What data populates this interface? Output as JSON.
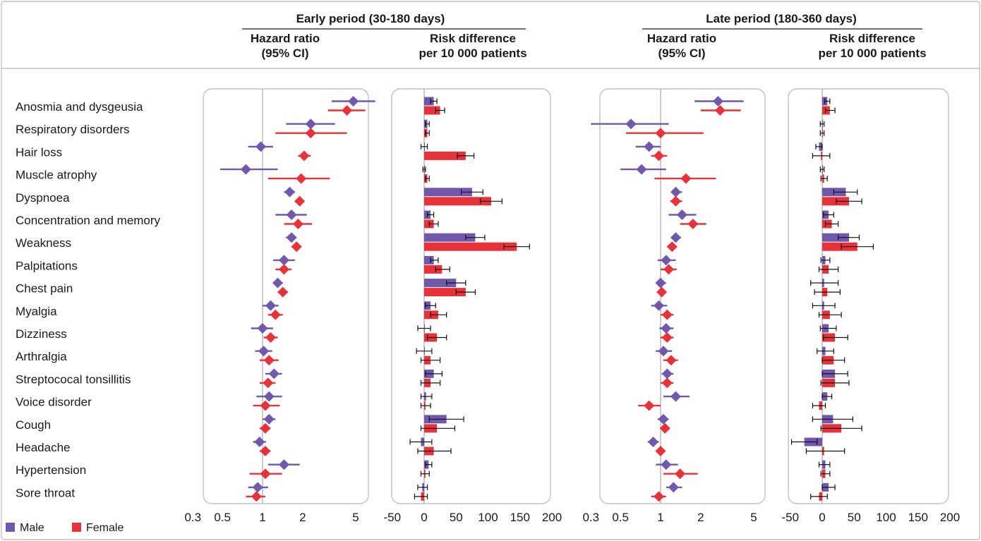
{
  "colors": {
    "male": "#7058ad",
    "female": "#e8323a",
    "axis": "#a9a9a9",
    "frame": "#b8b8b8",
    "text": "#1a1a1a"
  },
  "headers": {
    "early_title": "Early period (30-180 days)",
    "late_title": "Late period (180-360 days)",
    "hr_line1": "Hazard ratio",
    "hr_line2": "(95% CI)",
    "rd_line1": "Risk difference",
    "rd_line2": "per 10 000 patients"
  },
  "legend": {
    "male": "Male",
    "female": "Female"
  },
  "outcomes": [
    "Anosmia and dysgeusia",
    "Respiratory disorders",
    "Hair loss",
    "Muscle atrophy",
    "Dyspnoea",
    "Concentration and memory",
    "Weakness",
    "Palpitations",
    "Chest pain",
    "Myalgia",
    "Dizziness",
    "Arthralgia",
    "Streptococal tonsillitis",
    "Voice disorder",
    "Cough",
    "Headache",
    "Hypertension",
    "Sore throat"
  ],
  "chart_data": [
    {
      "type": "scatter",
      "panel": "Early period (30-180 days) – Hazard ratio (95% CI)",
      "xscale": "log",
      "xlim": [
        0.3,
        9
      ],
      "xticks": [
        0.3,
        0.5,
        1,
        2,
        5
      ],
      "xtick_labels": [
        "0.3",
        "0.5",
        "1",
        "2",
        "5"
      ],
      "reference_line": 1,
      "series": [
        {
          "name": "Male",
          "values": [
            [
              4.8,
              3.3,
              7.0
            ],
            [
              2.3,
              1.5,
              3.5
            ],
            [
              0.97,
              0.78,
              1.2
            ],
            [
              0.75,
              0.48,
              1.3
            ],
            [
              1.6,
              1.45,
              1.75
            ],
            [
              1.65,
              1.25,
              2.15
            ],
            [
              1.65,
              1.5,
              1.8
            ],
            [
              1.45,
              1.2,
              1.75
            ],
            [
              1.3,
              1.2,
              1.42
            ],
            [
              1.15,
              1.0,
              1.32
            ],
            [
              1.0,
              0.82,
              1.2
            ],
            [
              1.02,
              0.88,
              1.18
            ],
            [
              1.22,
              1.05,
              1.4
            ],
            [
              1.12,
              0.9,
              1.4
            ],
            [
              1.12,
              1.0,
              1.25
            ],
            [
              0.95,
              0.85,
              1.06
            ],
            [
              1.45,
              1.1,
              1.9
            ],
            [
              0.92,
              0.78,
              1.1
            ]
          ]
        },
        {
          "name": "Female",
          "values": [
            [
              4.3,
              3.1,
              5.9
            ],
            [
              2.3,
              1.25,
              4.3
            ],
            [
              2.05,
              1.85,
              2.3
            ],
            [
              1.95,
              1.1,
              3.2
            ],
            [
              1.9,
              1.75,
              2.05
            ],
            [
              1.85,
              1.45,
              2.35
            ],
            [
              1.8,
              1.65,
              1.95
            ],
            [
              1.45,
              1.25,
              1.65
            ],
            [
              1.42,
              1.3,
              1.55
            ],
            [
              1.25,
              1.1,
              1.42
            ],
            [
              1.15,
              1.02,
              1.3
            ],
            [
              1.12,
              0.95,
              1.32
            ],
            [
              1.1,
              0.95,
              1.25
            ],
            [
              1.05,
              0.85,
              1.35
            ],
            [
              1.05,
              0.95,
              1.15
            ],
            [
              1.05,
              0.95,
              1.15
            ],
            [
              1.05,
              0.8,
              1.4
            ],
            [
              0.9,
              0.75,
              1.05
            ]
          ]
        }
      ]
    },
    {
      "type": "bar",
      "panel": "Early period (30-180 days) – Risk difference per 10 000 patients",
      "xlim": [
        -50,
        200
      ],
      "xticks": [
        -50,
        0,
        50,
        100,
        150,
        200
      ],
      "xtick_labels": [
        "-50",
        "0",
        "50",
        "100",
        "150",
        "200"
      ],
      "series": [
        {
          "name": "Male",
          "values": [
            [
              15,
              10,
              20
            ],
            [
              5,
              2,
              8
            ],
            [
              0,
              -5,
              5
            ],
            [
              0,
              -2,
              2
            ],
            [
              75,
              58,
              92
            ],
            [
              10,
              5,
              15
            ],
            [
              80,
              65,
              95
            ],
            [
              15,
              10,
              22
            ],
            [
              50,
              35,
              65
            ],
            [
              10,
              2,
              18
            ],
            [
              0,
              -10,
              10
            ],
            [
              0,
              -12,
              12
            ],
            [
              15,
              2,
              28
            ],
            [
              3,
              -5,
              12
            ],
            [
              35,
              8,
              62
            ],
            [
              -5,
              -22,
              12
            ],
            [
              7,
              2,
              12
            ],
            [
              -3,
              -10,
              5
            ]
          ]
        },
        {
          "name": "Female",
          "values": [
            [
              25,
              18,
              32
            ],
            [
              5,
              2,
              8
            ],
            [
              65,
              52,
              78
            ],
            [
              5,
              2,
              8
            ],
            [
              105,
              88,
              122
            ],
            [
              15,
              8,
              22
            ],
            [
              145,
              125,
              165
            ],
            [
              28,
              18,
              40
            ],
            [
              65,
              50,
              80
            ],
            [
              22,
              10,
              35
            ],
            [
              20,
              5,
              35
            ],
            [
              10,
              -5,
              25
            ],
            [
              10,
              -5,
              25
            ],
            [
              2,
              -5,
              10
            ],
            [
              20,
              -5,
              48
            ],
            [
              15,
              -10,
              42
            ],
            [
              2,
              -5,
              8
            ],
            [
              -5,
              -15,
              5
            ]
          ]
        }
      ]
    },
    {
      "type": "scatter",
      "panel": "Late period (180-360 days) – Hazard ratio (95% CI)",
      "xscale": "log",
      "xlim": [
        0.3,
        9
      ],
      "xticks": [
        0.3,
        0.5,
        1,
        2,
        5
      ],
      "xtick_labels": [
        "0.3",
        "0.5",
        "1",
        "2",
        "5"
      ],
      "reference_line": 1,
      "series": [
        {
          "name": "Male",
          "values": [
            [
              2.7,
              1.8,
              4.2
            ],
            [
              0.6,
              0.3,
              1.15
            ],
            [
              0.82,
              0.65,
              1.0
            ],
            [
              0.72,
              0.5,
              1.1
            ],
            [
              1.3,
              1.2,
              1.45
            ],
            [
              1.45,
              1.15,
              1.85
            ],
            [
              1.3,
              1.2,
              1.42
            ],
            [
              1.1,
              0.95,
              1.3
            ],
            [
              1.0,
              0.92,
              1.1
            ],
            [
              0.97,
              0.85,
              1.12
            ],
            [
              1.1,
              0.98,
              1.25
            ],
            [
              1.05,
              0.92,
              1.22
            ],
            [
              1.12,
              1.02,
              1.25
            ],
            [
              1.3,
              1.05,
              1.65
            ],
            [
              1.05,
              0.95,
              1.15
            ],
            [
              0.88,
              0.8,
              0.97
            ],
            [
              1.1,
              0.92,
              1.35
            ],
            [
              1.25,
              1.1,
              1.45
            ]
          ]
        },
        {
          "name": "Female",
          "values": [
            [
              2.8,
              2.0,
              4.0
            ],
            [
              1.0,
              0.55,
              2.1
            ],
            [
              0.97,
              0.85,
              1.12
            ],
            [
              1.55,
              0.9,
              2.6
            ],
            [
              1.3,
              1.18,
              1.45
            ],
            [
              1.75,
              1.4,
              2.2
            ],
            [
              1.22,
              1.12,
              1.32
            ],
            [
              1.15,
              1.0,
              1.32
            ],
            [
              1.02,
              0.95,
              1.1
            ],
            [
              1.12,
              1.0,
              1.25
            ],
            [
              1.12,
              1.0,
              1.25
            ],
            [
              1.2,
              1.05,
              1.35
            ],
            [
              1.12,
              1.0,
              1.25
            ],
            [
              0.82,
              0.68,
              1.0
            ],
            [
              1.08,
              1.0,
              1.15
            ],
            [
              1.0,
              0.92,
              1.08
            ],
            [
              1.4,
              1.05,
              1.9
            ],
            [
              0.97,
              0.85,
              1.1
            ]
          ]
        }
      ]
    },
    {
      "type": "bar",
      "panel": "Late period (180-360 days) – Risk difference per 10 000 patients",
      "xlim": [
        -50,
        200
      ],
      "xticks": [
        -50,
        0,
        50,
        100,
        150,
        200
      ],
      "xtick_labels": [
        "-50",
        "0",
        "50",
        "100",
        "150",
        "200"
      ],
      "series": [
        {
          "name": "Male",
          "values": [
            [
              8,
              4,
              12
            ],
            [
              0,
              -3,
              3
            ],
            [
              -5,
              -10,
              0
            ],
            [
              0,
              -3,
              3
            ],
            [
              37,
              18,
              55
            ],
            [
              10,
              2,
              18
            ],
            [
              42,
              25,
              58
            ],
            [
              5,
              -2,
              12
            ],
            [
              3,
              -18,
              25
            ],
            [
              3,
              -15,
              20
            ],
            [
              10,
              -3,
              22
            ],
            [
              5,
              -8,
              18
            ],
            [
              20,
              0,
              40
            ],
            [
              8,
              0,
              15
            ],
            [
              17,
              -15,
              48
            ],
            [
              -28,
              -48,
              -8
            ],
            [
              5,
              -5,
              12
            ],
            [
              10,
              0,
              20
            ]
          ]
        },
        {
          "name": "Female",
          "values": [
            [
              12,
              5,
              20
            ],
            [
              0,
              -3,
              3
            ],
            [
              -2,
              -15,
              12
            ],
            [
              3,
              -2,
              8
            ],
            [
              42,
              22,
              62
            ],
            [
              15,
              5,
              25
            ],
            [
              55,
              30,
              80
            ],
            [
              10,
              -5,
              25
            ],
            [
              8,
              -12,
              28
            ],
            [
              12,
              -5,
              30
            ],
            [
              20,
              2,
              40
            ],
            [
              18,
              0,
              35
            ],
            [
              20,
              -2,
              42
            ],
            [
              -5,
              -15,
              5
            ],
            [
              30,
              -2,
              62
            ],
            [
              3,
              -25,
              35
            ],
            [
              5,
              -2,
              12
            ],
            [
              -5,
              -18,
              8
            ]
          ]
        }
      ]
    }
  ]
}
